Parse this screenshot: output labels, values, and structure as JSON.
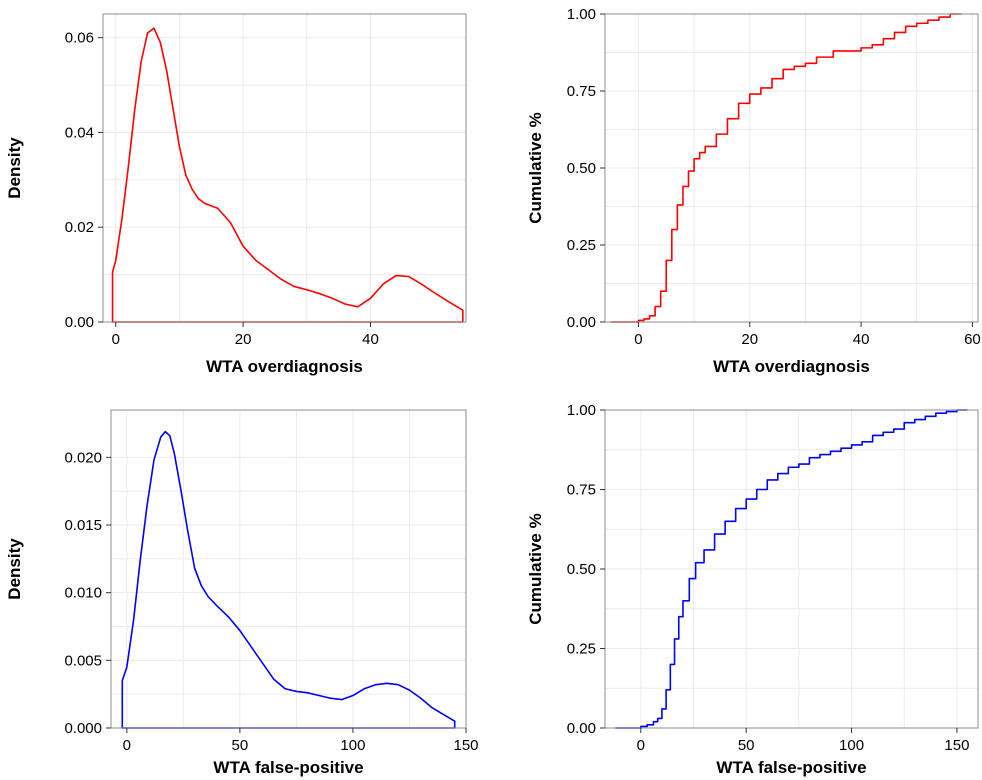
{
  "chart_data": [
    {
      "id": "density-overdiagnosis",
      "type": "line",
      "variant": "density",
      "title": "",
      "xlabel": "WTA overdiagnosis",
      "ylabel": "Density",
      "xlim": [
        -2,
        55
      ],
      "ylim": [
        0,
        0.065
      ],
      "xticks": [
        0,
        20,
        40
      ],
      "xtick_labels": [
        "0",
        "20",
        "40"
      ],
      "yticks": [
        0,
        0.02,
        0.04,
        0.06
      ],
      "ytick_labels": [
        "0.00",
        "0.02",
        "0.04",
        "0.06"
      ],
      "grid": true,
      "legend": "none",
      "color": "#ff0000",
      "closed_polygon": true,
      "x": [
        -0.5,
        0,
        1,
        2,
        3,
        4,
        5,
        6,
        7,
        8,
        9,
        10,
        11,
        12,
        13,
        14,
        16,
        18,
        20,
        22,
        24,
        26,
        28,
        30,
        32,
        34,
        36,
        38,
        40,
        42,
        44,
        46,
        48,
        50,
        52,
        54.5
      ],
      "y": [
        0.0105,
        0.013,
        0.022,
        0.033,
        0.045,
        0.055,
        0.061,
        0.062,
        0.059,
        0.053,
        0.045,
        0.037,
        0.031,
        0.028,
        0.026,
        0.025,
        0.024,
        0.021,
        0.016,
        0.013,
        0.011,
        0.009,
        0.0075,
        0.0068,
        0.006,
        0.005,
        0.0038,
        0.0032,
        0.005,
        0.008,
        0.0098,
        0.0096,
        0.008,
        0.0062,
        0.0045,
        0.0025
      ]
    },
    {
      "id": "ecdf-overdiagnosis",
      "type": "line",
      "variant": "step",
      "title": "",
      "xlabel": "WTA overdiagnosis",
      "ylabel": "Cumulative %",
      "xlim": [
        -6,
        61
      ],
      "ylim": [
        0,
        1
      ],
      "xticks": [
        0,
        20,
        40,
        60
      ],
      "xtick_labels": [
        "0",
        "20",
        "40",
        "60"
      ],
      "yticks": [
        0,
        0.25,
        0.5,
        0.75,
        1
      ],
      "ytick_labels": [
        "0.00",
        "0.25",
        "0.50",
        "0.75",
        "1.00"
      ],
      "grid": true,
      "legend": "none",
      "color": "#ff0000",
      "x": [
        -5,
        -1,
        0,
        1,
        2,
        3,
        4,
        5,
        6,
        7,
        8,
        9,
        10,
        11,
        12,
        14,
        16,
        18,
        20,
        22,
        24,
        26,
        28,
        30,
        32,
        35,
        38,
        40,
        42,
        44,
        46,
        48,
        50,
        52,
        54,
        56,
        58
      ],
      "y": [
        0,
        0,
        0.005,
        0.01,
        0.02,
        0.05,
        0.1,
        0.2,
        0.3,
        0.38,
        0.44,
        0.49,
        0.53,
        0.55,
        0.57,
        0.61,
        0.66,
        0.71,
        0.74,
        0.76,
        0.79,
        0.82,
        0.83,
        0.84,
        0.86,
        0.88,
        0.88,
        0.89,
        0.9,
        0.92,
        0.94,
        0.96,
        0.97,
        0.98,
        0.99,
        1,
        1
      ]
    },
    {
      "id": "density-false-positive",
      "type": "line",
      "variant": "density",
      "title": "",
      "xlabel": "WTA false-positive",
      "ylabel": "Density",
      "xlim": [
        -7,
        150
      ],
      "ylim": [
        0,
        0.0235
      ],
      "xticks": [
        0,
        50,
        100,
        150
      ],
      "xtick_labels": [
        "0",
        "50",
        "100",
        "150"
      ],
      "yticks": [
        0,
        0.005,
        0.01,
        0.015,
        0.02
      ],
      "ytick_labels": [
        "0.000",
        "0.005",
        "0.010",
        "0.015",
        "0.020"
      ],
      "grid": true,
      "legend": "none",
      "color": "#0000ff",
      "closed_polygon": true,
      "x": [
        -2,
        0,
        3,
        6,
        9,
        12,
        15,
        17,
        19,
        21,
        24,
        27,
        30,
        33,
        36,
        40,
        45,
        50,
        55,
        60,
        65,
        70,
        75,
        80,
        85,
        90,
        95,
        100,
        105,
        110,
        115,
        120,
        125,
        130,
        135,
        140,
        145
      ],
      "y": [
        0.0035,
        0.0045,
        0.008,
        0.0125,
        0.0165,
        0.0198,
        0.0215,
        0.0219,
        0.0216,
        0.0203,
        0.0175,
        0.0145,
        0.0118,
        0.0105,
        0.0097,
        0.009,
        0.0082,
        0.0072,
        0.006,
        0.0048,
        0.0036,
        0.0029,
        0.0027,
        0.0026,
        0.0024,
        0.0022,
        0.0021,
        0.0024,
        0.0029,
        0.0032,
        0.0033,
        0.0032,
        0.0028,
        0.0022,
        0.0015,
        0.001,
        0.0005
      ]
    },
    {
      "id": "ecdf-false-positive",
      "type": "line",
      "variant": "step",
      "title": "",
      "xlabel": "WTA false-positive",
      "ylabel": "Cumulative %",
      "xlim": [
        -17,
        160
      ],
      "ylim": [
        0,
        1
      ],
      "xticks": [
        0,
        50,
        100,
        150
      ],
      "xtick_labels": [
        "0",
        "50",
        "100",
        "150"
      ],
      "yticks": [
        0,
        0.25,
        0.5,
        0.75,
        1
      ],
      "ytick_labels": [
        "0.00",
        "0.25",
        "0.50",
        "0.75",
        "1.00"
      ],
      "grid": true,
      "legend": "none",
      "color": "#0000ff",
      "x": [
        -12,
        -2,
        0,
        3,
        6,
        8,
        10,
        12,
        14,
        16,
        18,
        20,
        23,
        26,
        30,
        35,
        40,
        45,
        50,
        55,
        60,
        65,
        70,
        75,
        80,
        85,
        90,
        95,
        100,
        105,
        110,
        115,
        120,
        125,
        130,
        135,
        140,
        145,
        150,
        155
      ],
      "y": [
        0,
        0,
        0.005,
        0.01,
        0.02,
        0.03,
        0.06,
        0.12,
        0.2,
        0.28,
        0.35,
        0.4,
        0.47,
        0.52,
        0.56,
        0.61,
        0.65,
        0.69,
        0.72,
        0.75,
        0.78,
        0.8,
        0.82,
        0.83,
        0.85,
        0.86,
        0.87,
        0.88,
        0.89,
        0.9,
        0.92,
        0.93,
        0.94,
        0.96,
        0.97,
        0.98,
        0.99,
        0.995,
        1,
        1
      ]
    }
  ]
}
